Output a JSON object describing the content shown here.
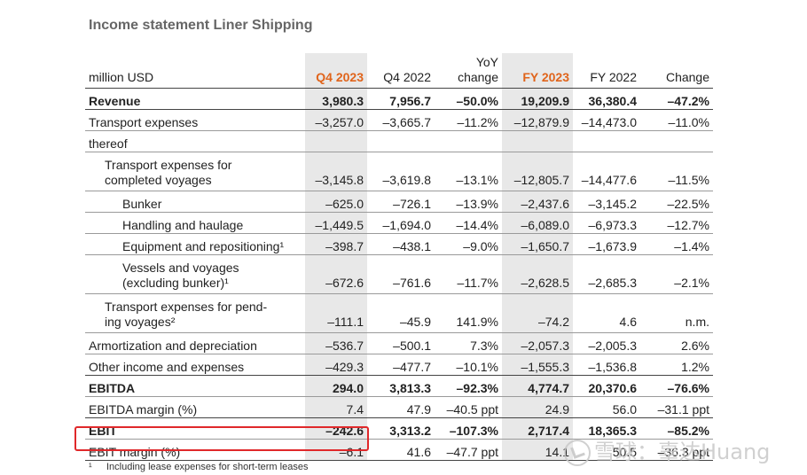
{
  "title": "Income statement Liner Shipping",
  "columns": {
    "label": "million USD",
    "q4_2023": "Q4 2023",
    "q4_2022": "Q4 2022",
    "yoy_line1": "YoY",
    "yoy_line2": "change",
    "fy_2023": "FY 2023",
    "fy_2022": "FY 2022",
    "change": "Change"
  },
  "rows": [
    {
      "label": "Revenue",
      "q4_2023": "3,980.3",
      "q4_2022": "7,956.7",
      "yoy": "–50.0%",
      "fy_2023": "19,209.9",
      "fy_2022": "36,380.4",
      "change": "–47.2%"
    },
    {
      "label": "Transport expenses",
      "q4_2023": "–3,257.0",
      "q4_2022": "–3,665.7",
      "yoy": "–11.2%",
      "fy_2023": "–12,879.9",
      "fy_2022": "–14,473.0",
      "change": "–11.0%"
    },
    {
      "label": "thereof",
      "q4_2023": "",
      "q4_2022": "",
      "yoy": "",
      "fy_2023": "",
      "fy_2022": "",
      "change": ""
    },
    {
      "label_line1": "Transport expenses for",
      "label_line2": "completed voyages",
      "q4_2023": "–3,145.8",
      "q4_2022": "–3,619.8",
      "yoy": "–13.1%",
      "fy_2023": "–12,805.7",
      "fy_2022": "–14,477.6",
      "change": "–11.5%"
    },
    {
      "label": "Bunker",
      "q4_2023": "–625.0",
      "q4_2022": "–726.1",
      "yoy": "–13.9%",
      "fy_2023": "–2,437.6",
      "fy_2022": "–3,145.2",
      "change": "–22.5%"
    },
    {
      "label": "Handling and haulage",
      "q4_2023": "–1,449.5",
      "q4_2022": "–1,694.0",
      "yoy": "–14.4%",
      "fy_2023": "–6,089.0",
      "fy_2022": "–6,973.3",
      "change": "–12.7%"
    },
    {
      "label": "Equipment and repositioning¹",
      "q4_2023": "–398.7",
      "q4_2022": "–438.1",
      "yoy": "–9.0%",
      "fy_2023": "–1,650.7",
      "fy_2022": "–1,673.9",
      "change": "–1.4%"
    },
    {
      "label_line1": "Vessels and voyages",
      "label_line2": "(excluding bunker)¹",
      "q4_2023": "–672.6",
      "q4_2022": "–761.6",
      "yoy": "–11.7%",
      "fy_2023": "–2,628.5",
      "fy_2022": "–2,685.3",
      "change": "–2.1%"
    },
    {
      "label_line1": "Transport expenses for pend-",
      "label_line2": "ing voyages²",
      "q4_2023": "–111.1",
      "q4_2022": "–45.9",
      "yoy": "141.9%",
      "fy_2023": "–74.2",
      "fy_2022": "4.6",
      "change": "n.m."
    },
    {
      "label": "Armortization and depreciation",
      "q4_2023": "–536.7",
      "q4_2022": "–500.1",
      "yoy": "7.3%",
      "fy_2023": "–2,057.3",
      "fy_2022": "–2,005.3",
      "change": "2.6%"
    },
    {
      "label": "Other income and expenses",
      "q4_2023": "–429.3",
      "q4_2022": "–477.7",
      "yoy": "–10.1%",
      "fy_2023": "–1,555.3",
      "fy_2022": "–1,536.8",
      "change": "1.2%"
    },
    {
      "label": "EBITDA",
      "q4_2023": "294.0",
      "q4_2022": "3,813.3",
      "yoy": "–92.3%",
      "fy_2023": "4,774.7",
      "fy_2022": "20,370.6",
      "change": "–76.6%"
    },
    {
      "label": "EBITDA margin (%)",
      "q4_2023": "7.4",
      "q4_2022": "47.9",
      "yoy": "–40.5 ppt",
      "fy_2023": "24.9",
      "fy_2022": "56.0",
      "change": "–31.1 ppt"
    },
    {
      "label": "EBIT",
      "q4_2023": "–242.6",
      "q4_2022": "3,313.2",
      "yoy": "–107.3%",
      "fy_2023": "2,717.4",
      "fy_2022": "18,365.3",
      "change": "–85.2%"
    },
    {
      "label": "EBIT margin (%)",
      "q4_2023": "–6.1",
      "q4_2022": "41.6",
      "yoy": "–47.7 ppt",
      "fy_2023": "14.1",
      "fy_2022": "50.5",
      "change": "–36.3 ppt"
    }
  ],
  "footnote": {
    "mark": "¹",
    "text": "Including lease expenses for short-term leases"
  },
  "watermark": "雪球：辜达Huang",
  "colors": {
    "accent": "#e0641b",
    "highlight": "#e0282a",
    "shade": "#e8e8e8"
  }
}
